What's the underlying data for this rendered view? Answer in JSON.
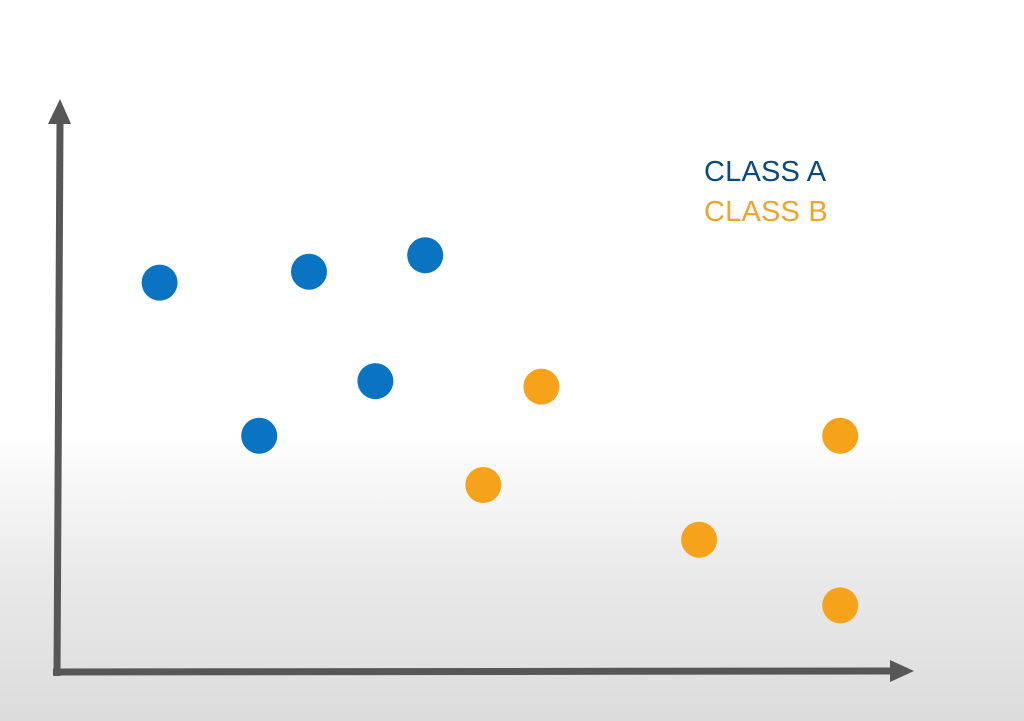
{
  "chart_data": {
    "type": "scatter",
    "title": "",
    "xlabel": "",
    "ylabel": "",
    "xlim": [
      0,
      10
    ],
    "ylim": [
      0,
      10
    ],
    "grid": false,
    "axis_ticks": false,
    "legend": {
      "placement": "top-right",
      "style": "colored-text"
    },
    "series": [
      {
        "name": "CLASS A",
        "color": "#0A74C2",
        "label_color": "#0B4A7E",
        "points": [
          {
            "x": 1.2,
            "y": 7.1
          },
          {
            "x": 3.0,
            "y": 7.3
          },
          {
            "x": 4.4,
            "y": 7.6
          },
          {
            "x": 3.8,
            "y": 5.3
          },
          {
            "x": 2.4,
            "y": 4.3
          }
        ]
      },
      {
        "name": "CLASS B",
        "color": "#F7A21B",
        "label_color": "#F0A42A",
        "points": [
          {
            "x": 5.8,
            "y": 5.2
          },
          {
            "x": 5.1,
            "y": 3.4
          },
          {
            "x": 7.7,
            "y": 2.4
          },
          {
            "x": 9.4,
            "y": 4.3
          },
          {
            "x": 9.4,
            "y": 1.2
          }
        ]
      }
    ]
  }
}
